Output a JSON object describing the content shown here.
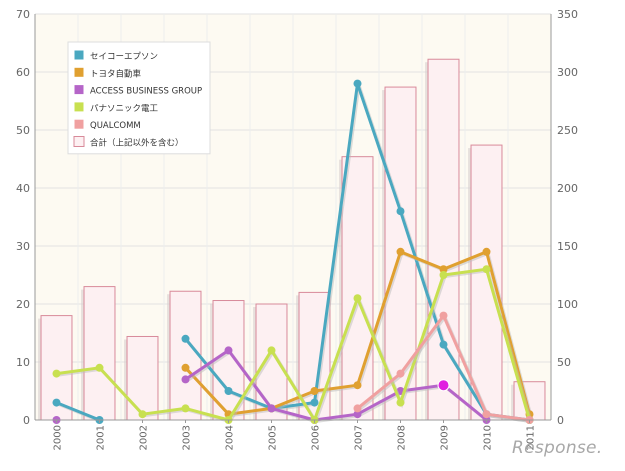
{
  "watermark": "Response.",
  "chart_data": {
    "type": "bar",
    "categories": [
      "2000",
      "2001",
      "2002",
      "2003",
      "2004",
      "2005",
      "2006",
      "2007",
      "2008",
      "2009",
      "2010",
      "2011"
    ],
    "y_left": {
      "min": 0,
      "max": 70,
      "ticks": [
        0,
        10,
        20,
        30,
        40,
        50,
        60,
        70
      ]
    },
    "y_right": {
      "min": 0,
      "max": 350,
      "ticks": [
        0,
        50,
        100,
        150,
        200,
        250,
        300,
        350
      ]
    },
    "grid": true,
    "legend_position": "top-left",
    "bar_series": {
      "name": "合計（上記以外を含む）",
      "axis": "right",
      "color": "#fdf0f2",
      "values": [
        90,
        115,
        72,
        111,
        103,
        100,
        110,
        227,
        287,
        311,
        237,
        33
      ]
    },
    "line_series": [
      {
        "name": "セイコーエプソン",
        "axis": "left",
        "color": "#4aa8c0",
        "values": [
          3,
          0,
          null,
          14,
          5,
          2,
          3,
          58,
          36,
          13,
          1,
          0
        ]
      },
      {
        "name": "トヨタ自動車",
        "axis": "left",
        "color": "#e0a030",
        "values": [
          null,
          null,
          null,
          9,
          1,
          2,
          5,
          6,
          29,
          26,
          29,
          1
        ]
      },
      {
        "name": "ACCESS BUSINESS GROUP",
        "axis": "left",
        "color": "#b565c8",
        "values": [
          0,
          null,
          null,
          7,
          12,
          2,
          0,
          1,
          5,
          6,
          0,
          null
        ]
      },
      {
        "name": "パナソニック電工",
        "axis": "left",
        "color": "#c8e050",
        "values": [
          8,
          9,
          1,
          2,
          0,
          12,
          0,
          21,
          3,
          25,
          26,
          0
        ]
      },
      {
        "name": "QUALCOMM",
        "axis": "left",
        "color": "#f0a0a0",
        "values": [
          null,
          null,
          null,
          null,
          null,
          null,
          null,
          2,
          8,
          18,
          1,
          0
        ]
      }
    ],
    "highlight": {
      "series": "ACCESS BUSINESS GROUP",
      "category": "2009",
      "color": "#e020e0"
    }
  }
}
